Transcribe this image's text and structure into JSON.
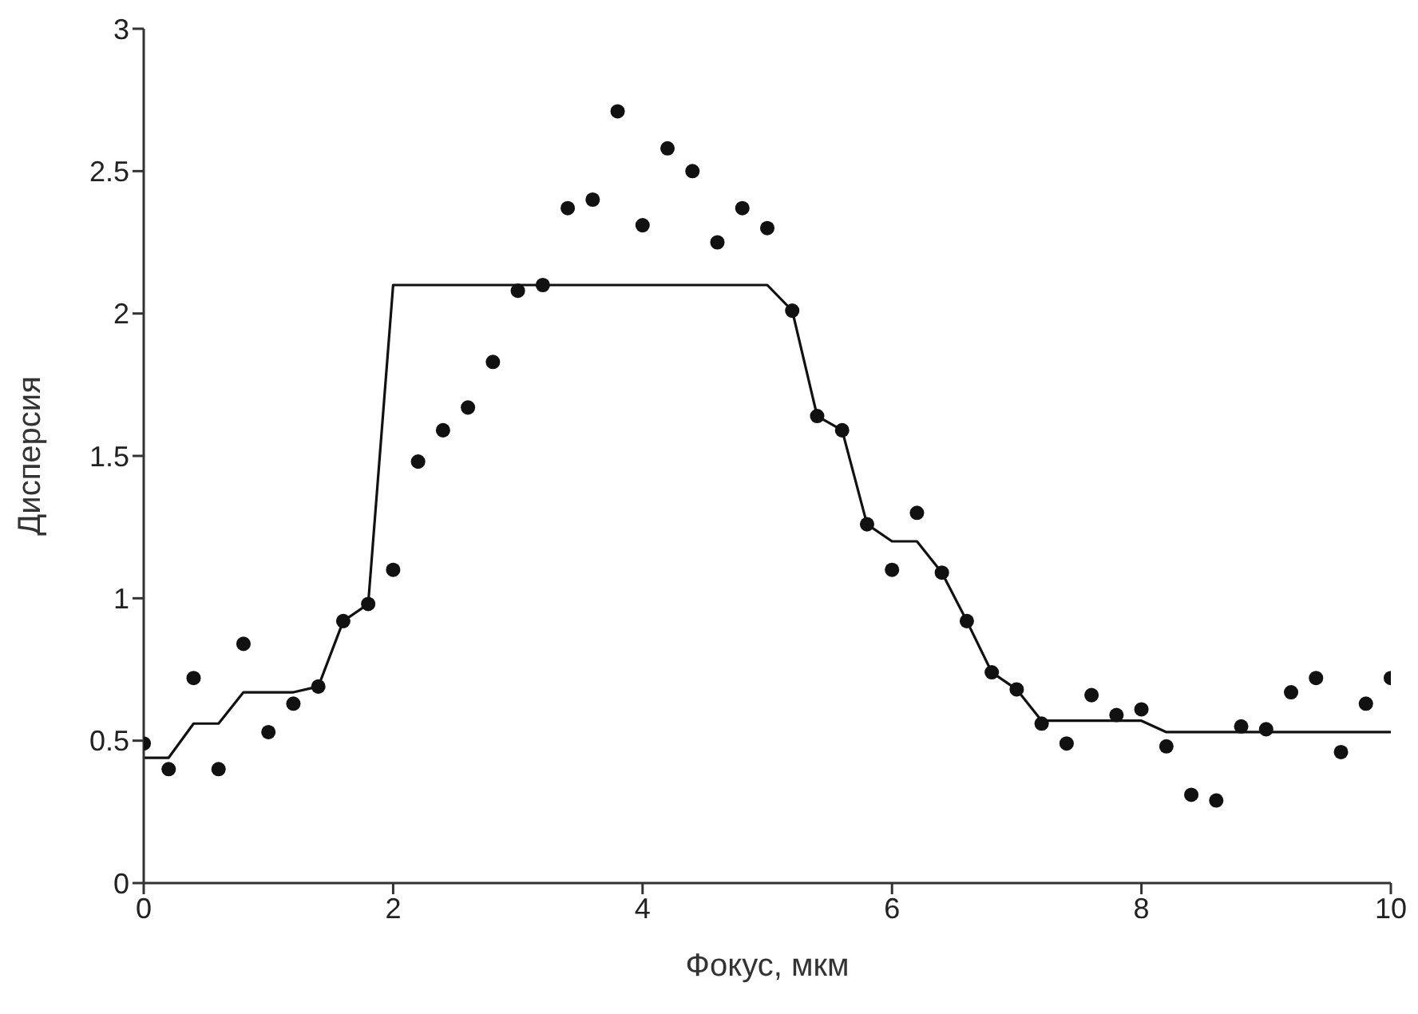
{
  "chart_data": {
    "type": "scatter",
    "xlabel": "Фокус, мкм",
    "ylabel": "Дисперсия",
    "xlim": [
      0,
      10
    ],
    "xticks": [
      0,
      2,
      4,
      6,
      8,
      10
    ],
    "ylim": [
      0,
      3
    ],
    "yticks": [
      0,
      0.5,
      1,
      1.5,
      2,
      2.5,
      3
    ],
    "grid": false,
    "series": [
      {
        "color": "#111111",
        "marker": "circle",
        "x": [
          0,
          0.2,
          0.4,
          0.6,
          0.8,
          1,
          1.2,
          1.4,
          1.6,
          1.8,
          2,
          2.2,
          2.4,
          2.6,
          2.8,
          3,
          3.2,
          3.4,
          3.6,
          3.8,
          4,
          4.2,
          4.4,
          4.6,
          4.8,
          5,
          5.2,
          5.4,
          5.6,
          5.8,
          6,
          6.2,
          6.4,
          6.6,
          6.8,
          7,
          7.2,
          7.4,
          7.6,
          7.8,
          8,
          8.2,
          8.4,
          8.6,
          8.8,
          9,
          9.2,
          9.4,
          9.6,
          9.8,
          10
        ],
        "values": [
          0.49,
          0.4,
          0.72,
          0.4,
          0.84,
          0.53,
          0.63,
          0.69,
          0.92,
          0.98,
          1.1,
          1.48,
          1.59,
          1.67,
          1.83,
          2.08,
          2.1,
          2.37,
          2.4,
          2.71,
          2.31,
          2.58,
          2.5,
          2.25,
          2.37,
          2.3,
          2.01,
          1.64,
          1.59,
          1.26,
          1.1,
          1.3,
          1.09,
          0.92,
          0.74,
          0.68,
          0.56,
          0.49,
          0.66,
          0.59,
          0.61,
          0.48,
          0.31,
          0.29,
          0.55,
          0.54,
          0.67,
          0.72,
          0.46,
          0.63,
          0.72
        ]
      },
      {
        "type": "line",
        "color": "#111111",
        "marker": "none",
        "line_style": "solid",
        "x": [
          0,
          0.2,
          0.4,
          0.6,
          0.8,
          1.2,
          1.4,
          1.6,
          1.8,
          2,
          5,
          5.2,
          5.4,
          5.6,
          5.8,
          6,
          6.2,
          6.4,
          6.6,
          6.8,
          7,
          7.2,
          8,
          8.2,
          10
        ],
        "values": [
          0.44,
          0.44,
          0.56,
          0.56,
          0.67,
          0.67,
          0.69,
          0.92,
          0.98,
          2.1,
          2.1,
          2.01,
          1.64,
          1.59,
          1.26,
          1.2,
          1.2,
          1.09,
          0.92,
          0.74,
          0.68,
          0.57,
          0.57,
          0.53,
          0.53
        ]
      }
    ]
  }
}
